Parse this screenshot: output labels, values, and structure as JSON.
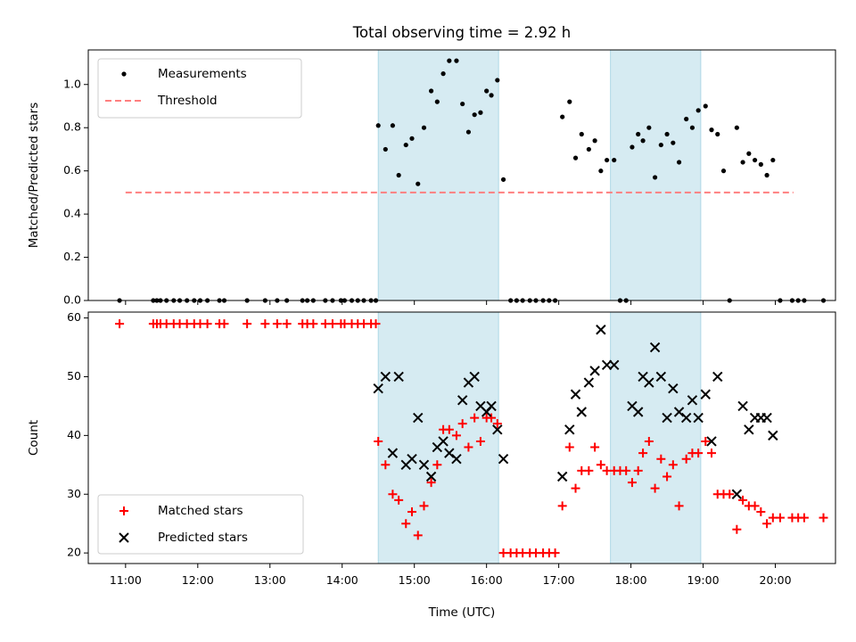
{
  "chart_data": [
    {
      "type": "scatter",
      "title": "Total observing time = 2.92 h",
      "ylabel": "Matched/Predicted stars",
      "xlabel": "",
      "ylim": [
        0,
        1.16
      ],
      "yticks": [
        "0.0",
        "0.2",
        "0.4",
        "0.6",
        "0.8",
        "1.0"
      ],
      "legend_position": "upper-left",
      "shaded_intervals": [
        [
          "14:30",
          "16:10"
        ],
        [
          "17:43",
          "18:58"
        ]
      ],
      "threshold": {
        "name": "Threshold",
        "value": 0.5,
        "x_range": [
          "11:00",
          "20:15"
        ],
        "color": "#ff7f7f"
      },
      "series": [
        {
          "name": "Measurements",
          "color": "#000000",
          "points": [
            [
              "10:55",
              0
            ],
            [
              "11:23",
              0
            ],
            [
              "11:26",
              0
            ],
            [
              "11:29",
              0
            ],
            [
              "11:34",
              0
            ],
            [
              "11:40",
              0
            ],
            [
              "11:45",
              0
            ],
            [
              "11:51",
              0
            ],
            [
              "11:57",
              0
            ],
            [
              "12:02",
              0
            ],
            [
              "12:08",
              0
            ],
            [
              "12:18",
              0
            ],
            [
              "12:22",
              0
            ],
            [
              "12:41",
              0
            ],
            [
              "12:56",
              0
            ],
            [
              "13:06",
              0
            ],
            [
              "13:14",
              0
            ],
            [
              "13:27",
              0
            ],
            [
              "13:31",
              0
            ],
            [
              "13:36",
              0
            ],
            [
              "13:46",
              0
            ],
            [
              "13:52",
              0
            ],
            [
              "13:59",
              0
            ],
            [
              "14:02",
              0
            ],
            [
              "14:08",
              0
            ],
            [
              "14:13",
              0
            ],
            [
              "14:18",
              0
            ],
            [
              "14:24",
              0
            ],
            [
              "14:28",
              0
            ],
            [
              "14:30",
              0.81
            ],
            [
              "14:36",
              0.7
            ],
            [
              "14:42",
              0.81
            ],
            [
              "14:47",
              0.58
            ],
            [
              "14:53",
              0.72
            ],
            [
              "14:58",
              0.75
            ],
            [
              "15:03",
              0.54
            ],
            [
              "15:08",
              0.8
            ],
            [
              "15:14",
              0.97
            ],
            [
              "15:19",
              0.92
            ],
            [
              "15:24",
              1.05
            ],
            [
              "15:29",
              1.11
            ],
            [
              "15:35",
              1.11
            ],
            [
              "15:40",
              0.91
            ],
            [
              "15:45",
              0.78
            ],
            [
              "15:50",
              0.86
            ],
            [
              "15:55",
              0.87
            ],
            [
              "16:00",
              0.97
            ],
            [
              "16:04",
              0.95
            ],
            [
              "16:09",
              1.02
            ],
            [
              "16:14",
              0.56
            ],
            [
              "16:20",
              0
            ],
            [
              "16:25",
              0
            ],
            [
              "16:30",
              0
            ],
            [
              "16:36",
              0
            ],
            [
              "16:41",
              0
            ],
            [
              "16:47",
              0
            ],
            [
              "16:52",
              0
            ],
            [
              "16:57",
              0
            ],
            [
              "17:03",
              0.85
            ],
            [
              "17:09",
              0.92
            ],
            [
              "17:14",
              0.66
            ],
            [
              "17:19",
              0.77
            ],
            [
              "17:25",
              0.7
            ],
            [
              "17:30",
              0.74
            ],
            [
              "17:35",
              0.6
            ],
            [
              "17:40",
              0.65
            ],
            [
              "17:46",
              0.65
            ],
            [
              "17:51",
              0
            ],
            [
              "17:56",
              0
            ],
            [
              "18:01",
              0.71
            ],
            [
              "18:06",
              0.77
            ],
            [
              "18:10",
              0.74
            ],
            [
              "18:15",
              0.8
            ],
            [
              "18:20",
              0.57
            ],
            [
              "18:25",
              0.72
            ],
            [
              "18:30",
              0.77
            ],
            [
              "18:35",
              0.73
            ],
            [
              "18:40",
              0.64
            ],
            [
              "18:46",
              0.84
            ],
            [
              "18:51",
              0.8
            ],
            [
              "18:56",
              0.88
            ],
            [
              "19:02",
              0.9
            ],
            [
              "19:07",
              0.79
            ],
            [
              "19:12",
              0.77
            ],
            [
              "19:17",
              0.6
            ],
            [
              "19:22",
              0
            ],
            [
              "19:28",
              0.8
            ],
            [
              "19:33",
              0.64
            ],
            [
              "19:38",
              0.68
            ],
            [
              "19:43",
              0.65
            ],
            [
              "19:48",
              0.63
            ],
            [
              "19:53",
              0.58
            ],
            [
              "19:58",
              0.65
            ],
            [
              "20:04",
              0
            ],
            [
              "20:14",
              0
            ],
            [
              "20:19",
              0
            ],
            [
              "20:24",
              0
            ],
            [
              "20:40",
              0
            ]
          ]
        }
      ]
    },
    {
      "type": "scatter",
      "title": "",
      "ylabel": "Count",
      "xlabel": "Time (UTC)",
      "ylim": [
        18.2,
        61
      ],
      "yticks": [
        "20",
        "30",
        "40",
        "50",
        "60"
      ],
      "xticks": [
        "11:00",
        "12:00",
        "13:00",
        "14:00",
        "15:00",
        "16:00",
        "17:00",
        "18:00",
        "19:00",
        "20:00"
      ],
      "legend_position": "lower-left",
      "shaded_intervals": [
        [
          "14:30",
          "16:10"
        ],
        [
          "17:43",
          "18:58"
        ]
      ],
      "series": [
        {
          "name": "Matched stars",
          "marker": "plus",
          "color": "#ff0000",
          "points": [
            [
              "10:55",
              59
            ],
            [
              "11:23",
              59
            ],
            [
              "11:26",
              59
            ],
            [
              "11:29",
              59
            ],
            [
              "11:34",
              59
            ],
            [
              "11:40",
              59
            ],
            [
              "11:45",
              59
            ],
            [
              "11:51",
              59
            ],
            [
              "11:57",
              59
            ],
            [
              "12:02",
              59
            ],
            [
              "12:08",
              59
            ],
            [
              "12:18",
              59
            ],
            [
              "12:22",
              59
            ],
            [
              "12:41",
              59
            ],
            [
              "12:56",
              59
            ],
            [
              "13:06",
              59
            ],
            [
              "13:14",
              59
            ],
            [
              "13:27",
              59
            ],
            [
              "13:31",
              59
            ],
            [
              "13:36",
              59
            ],
            [
              "13:46",
              59
            ],
            [
              "13:52",
              59
            ],
            [
              "13:59",
              59
            ],
            [
              "14:02",
              59
            ],
            [
              "14:08",
              59
            ],
            [
              "14:13",
              59
            ],
            [
              "14:18",
              59
            ],
            [
              "14:24",
              59
            ],
            [
              "14:28",
              59
            ],
            [
              "14:30",
              39
            ],
            [
              "14:36",
              35
            ],
            [
              "14:42",
              30
            ],
            [
              "14:47",
              29
            ],
            [
              "14:53",
              25
            ],
            [
              "14:58",
              27
            ],
            [
              "15:03",
              23
            ],
            [
              "15:08",
              28
            ],
            [
              "15:14",
              32
            ],
            [
              "15:19",
              35
            ],
            [
              "15:24",
              41
            ],
            [
              "15:29",
              41
            ],
            [
              "15:35",
              40
            ],
            [
              "15:40",
              42
            ],
            [
              "15:45",
              38
            ],
            [
              "15:50",
              43
            ],
            [
              "15:55",
              39
            ],
            [
              "16:00",
              43
            ],
            [
              "16:04",
              43
            ],
            [
              "16:09",
              42
            ],
            [
              "16:14",
              20
            ],
            [
              "16:20",
              20
            ],
            [
              "16:25",
              20
            ],
            [
              "16:30",
              20
            ],
            [
              "16:36",
              20
            ],
            [
              "16:41",
              20
            ],
            [
              "16:47",
              20
            ],
            [
              "16:52",
              20
            ],
            [
              "16:57",
              20
            ],
            [
              "17:03",
              28
            ],
            [
              "17:09",
              38
            ],
            [
              "17:14",
              31
            ],
            [
              "17:19",
              34
            ],
            [
              "17:25",
              34
            ],
            [
              "17:30",
              38
            ],
            [
              "17:35",
              35
            ],
            [
              "17:40",
              34
            ],
            [
              "17:46",
              34
            ],
            [
              "17:51",
              34
            ],
            [
              "17:56",
              34
            ],
            [
              "18:01",
              32
            ],
            [
              "18:06",
              34
            ],
            [
              "18:10",
              37
            ],
            [
              "18:15",
              39
            ],
            [
              "18:20",
              31
            ],
            [
              "18:25",
              36
            ],
            [
              "18:30",
              33
            ],
            [
              "18:35",
              35
            ],
            [
              "18:40",
              28
            ],
            [
              "18:46",
              36
            ],
            [
              "18:51",
              37
            ],
            [
              "18:56",
              37
            ],
            [
              "19:02",
              39
            ],
            [
              "19:07",
              37
            ],
            [
              "19:12",
              30
            ],
            [
              "19:17",
              30
            ],
            [
              "19:22",
              30
            ],
            [
              "19:28",
              24
            ],
            [
              "19:33",
              29
            ],
            [
              "19:38",
              28
            ],
            [
              "19:43",
              28
            ],
            [
              "19:48",
              27
            ],
            [
              "19:53",
              25
            ],
            [
              "19:58",
              26
            ],
            [
              "20:04",
              26
            ],
            [
              "20:14",
              26
            ],
            [
              "20:19",
              26
            ],
            [
              "20:24",
              26
            ],
            [
              "20:40",
              26
            ]
          ]
        },
        {
          "name": "Predicted stars",
          "marker": "cross",
          "color": "#000000",
          "points": [
            [
              "14:30",
              48
            ],
            [
              "14:36",
              50
            ],
            [
              "14:42",
              37
            ],
            [
              "14:47",
              50
            ],
            [
              "14:53",
              35
            ],
            [
              "14:58",
              36
            ],
            [
              "15:03",
              43
            ],
            [
              "15:08",
              35
            ],
            [
              "15:14",
              33
            ],
            [
              "15:19",
              38
            ],
            [
              "15:24",
              39
            ],
            [
              "15:29",
              37
            ],
            [
              "15:35",
              36
            ],
            [
              "15:40",
              46
            ],
            [
              "15:45",
              49
            ],
            [
              "15:50",
              50
            ],
            [
              "15:55",
              45
            ],
            [
              "16:00",
              44
            ],
            [
              "16:04",
              45
            ],
            [
              "16:09",
              41
            ],
            [
              "16:14",
              36
            ],
            [
              "17:03",
              33
            ],
            [
              "17:09",
              41
            ],
            [
              "17:14",
              47
            ],
            [
              "17:19",
              44
            ],
            [
              "17:25",
              49
            ],
            [
              "17:30",
              51
            ],
            [
              "17:35",
              58
            ],
            [
              "17:40",
              52
            ],
            [
              "17:46",
              52
            ],
            [
              "18:01",
              45
            ],
            [
              "18:06",
              44
            ],
            [
              "18:10",
              50
            ],
            [
              "18:15",
              49
            ],
            [
              "18:20",
              55
            ],
            [
              "18:25",
              50
            ],
            [
              "18:30",
              43
            ],
            [
              "18:35",
              48
            ],
            [
              "18:40",
              44
            ],
            [
              "18:46",
              43
            ],
            [
              "18:51",
              46
            ],
            [
              "18:56",
              43
            ],
            [
              "19:02",
              47
            ],
            [
              "19:07",
              39
            ],
            [
              "19:12",
              50
            ],
            [
              "19:28",
              30
            ],
            [
              "19:33",
              45
            ],
            [
              "19:38",
              41
            ],
            [
              "19:43",
              43
            ],
            [
              "19:48",
              43
            ],
            [
              "19:53",
              43
            ],
            [
              "19:58",
              40
            ]
          ]
        }
      ]
    }
  ]
}
